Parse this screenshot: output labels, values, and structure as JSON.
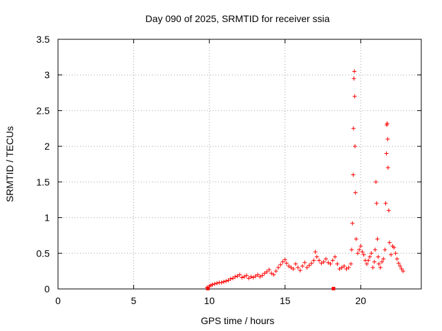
{
  "chart_data": {
    "type": "scatter",
    "title": "Day 090 of 2025, SRMTID for receiver ssia",
    "xlabel": "GPS time / hours",
    "ylabel": "SRMTID / TECUs",
    "xlim": [
      0,
      24
    ],
    "ylim": [
      0,
      3.5
    ],
    "xticks": [
      0,
      5,
      10,
      15,
      20
    ],
    "xtick_labels": [
      "0",
      "5",
      "10",
      "15",
      "20"
    ],
    "yticks": [
      0,
      0.5,
      1,
      1.5,
      2,
      2.5,
      3,
      3.5
    ],
    "ytick_labels": [
      "0",
      "0.5",
      "1",
      "1.5",
      "2",
      "2.5",
      "3",
      "3.5"
    ],
    "grid": true,
    "marker": "+",
    "series": [
      {
        "name": "SRMTID",
        "color": "#ff0000",
        "x": [
          9.85,
          10.0,
          10.1,
          10.2,
          10.35,
          10.5,
          10.65,
          10.8,
          10.95,
          11.1,
          11.25,
          11.4,
          11.55,
          11.7,
          11.85,
          12.0,
          12.15,
          12.3,
          12.45,
          12.6,
          12.75,
          12.9,
          13.05,
          13.2,
          13.35,
          13.5,
          13.65,
          13.8,
          13.95,
          14.1,
          14.25,
          14.4,
          14.55,
          14.7,
          14.85,
          15.0,
          15.1,
          15.25,
          15.4,
          15.55,
          15.7,
          15.85,
          16.0,
          16.15,
          16.3,
          16.45,
          16.6,
          16.75,
          16.9,
          17.0,
          17.1,
          17.25,
          17.4,
          17.55,
          17.7,
          17.85,
          18.0,
          18.15,
          18.3,
          18.45,
          18.6,
          18.75,
          18.9,
          19.05,
          19.2,
          19.35,
          19.4,
          19.45,
          19.5,
          19.52,
          19.55,
          19.58,
          19.6,
          19.62,
          19.65,
          19.7,
          19.8,
          19.9,
          20.0,
          20.1,
          20.2,
          20.3,
          20.4,
          20.5,
          20.6,
          20.7,
          20.8,
          20.9,
          20.95,
          21.0,
          21.05,
          21.1,
          21.15,
          21.2,
          21.3,
          21.4,
          21.5,
          21.6,
          21.65,
          21.7,
          21.72,
          21.75,
          21.78,
          21.8,
          21.85,
          21.9,
          22.0,
          22.1,
          22.2,
          22.3,
          22.4,
          22.5,
          22.6,
          22.7,
          22.8
        ],
        "y": [
          0.02,
          0.04,
          0.05,
          0.06,
          0.07,
          0.08,
          0.09,
          0.09,
          0.1,
          0.11,
          0.12,
          0.14,
          0.15,
          0.17,
          0.18,
          0.2,
          0.16,
          0.17,
          0.19,
          0.15,
          0.17,
          0.16,
          0.18,
          0.2,
          0.17,
          0.19,
          0.22,
          0.24,
          0.27,
          0.22,
          0.2,
          0.25,
          0.3,
          0.34,
          0.38,
          0.41,
          0.36,
          0.32,
          0.3,
          0.28,
          0.35,
          0.3,
          0.26,
          0.32,
          0.37,
          0.3,
          0.33,
          0.36,
          0.4,
          0.52,
          0.45,
          0.4,
          0.36,
          0.38,
          0.42,
          0.37,
          0.35,
          0.4,
          0.45,
          0.35,
          0.28,
          0.3,
          0.32,
          0.28,
          0.3,
          0.35,
          0.55,
          0.92,
          1.6,
          2.25,
          2.95,
          3.05,
          2.7,
          2.0,
          1.35,
          0.7,
          0.5,
          0.55,
          0.6,
          0.52,
          0.48,
          0.4,
          0.35,
          0.4,
          0.45,
          0.5,
          0.3,
          0.38,
          0.55,
          1.5,
          1.2,
          0.7,
          0.45,
          0.35,
          0.3,
          0.38,
          0.42,
          0.55,
          1.2,
          1.9,
          2.3,
          2.32,
          2.1,
          1.7,
          1.1,
          0.65,
          0.48,
          0.6,
          0.58,
          0.5,
          0.42,
          0.36,
          0.32,
          0.28,
          0.25
        ],
        "outliers": [
          {
            "x": 9.9,
            "y": 0.0
          },
          {
            "x": 18.2,
            "y": 0.0
          }
        ]
      }
    ]
  }
}
